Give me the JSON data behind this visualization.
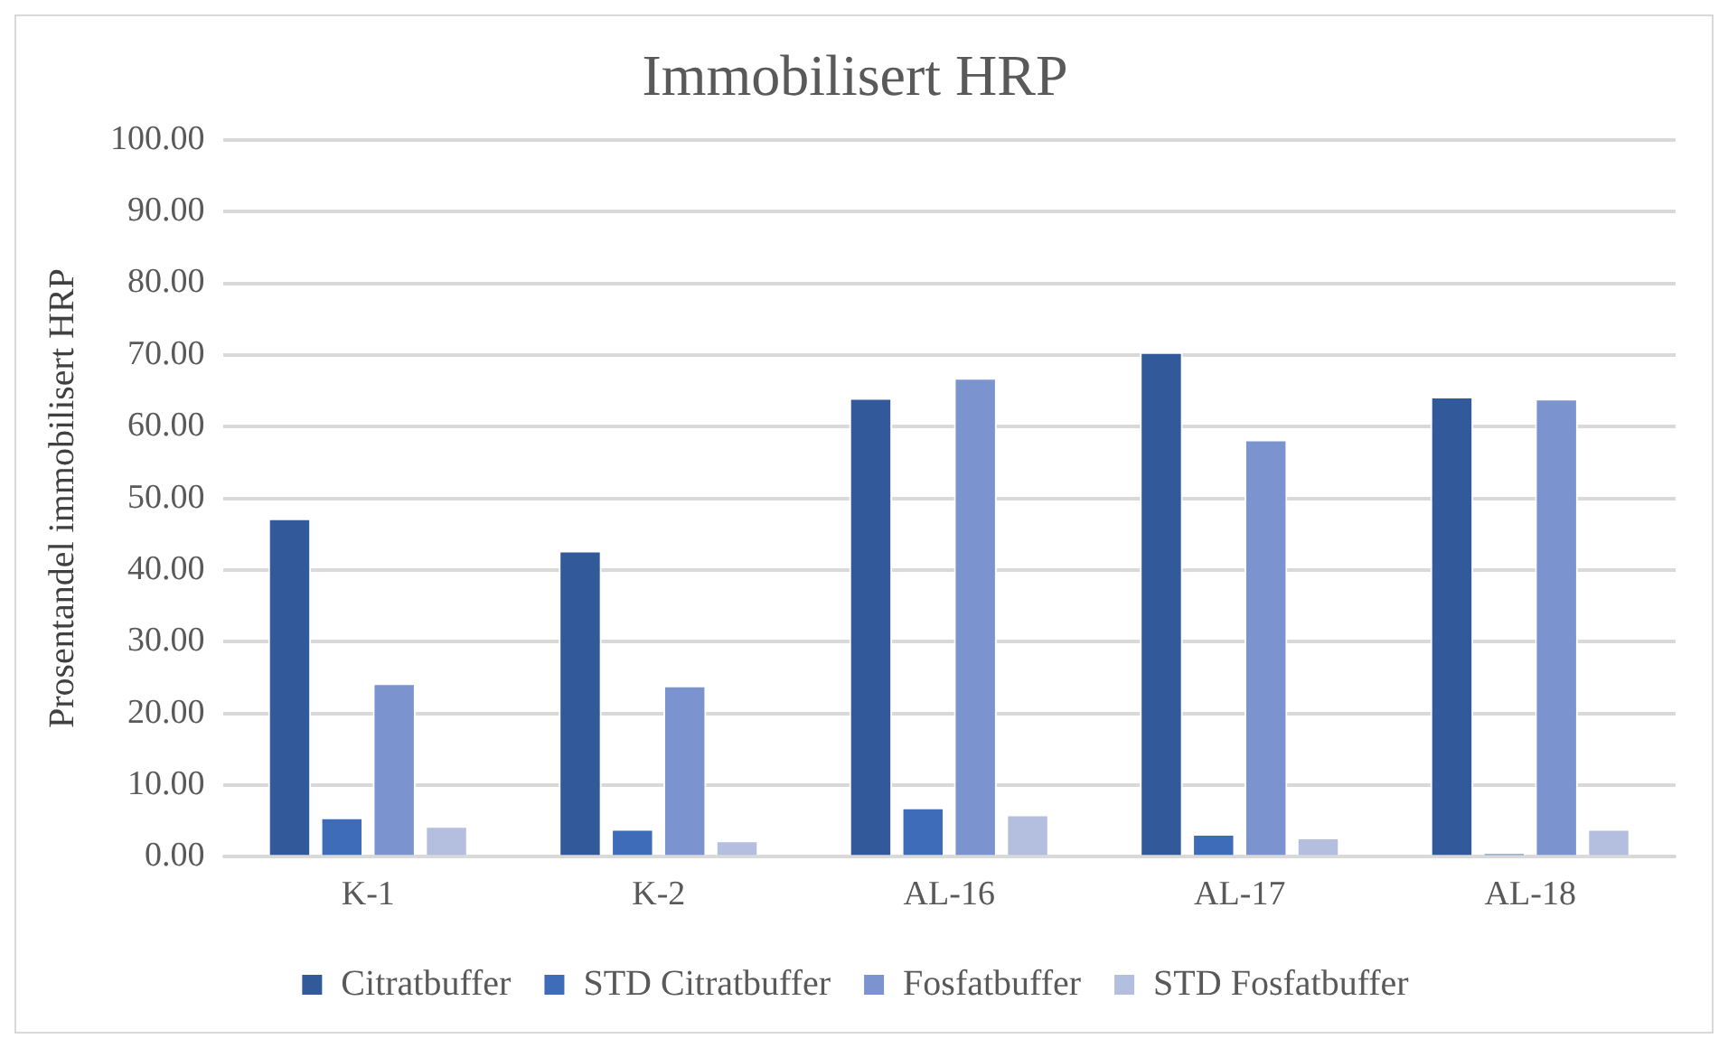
{
  "chart_data": {
    "type": "bar",
    "title": "Immobilisert HRP",
    "ylabel": "Prosentandel immobilisert HRP",
    "categories": [
      "K-1",
      "K-2",
      "AL-16",
      "AL-17",
      "AL-18"
    ],
    "series": [
      {
        "name": "Citratbuffer",
        "color": "#325a9a",
        "values": [
          47.2,
          42.7,
          64.0,
          70.4,
          64.2
        ]
      },
      {
        "name": "STD Citratbuffer",
        "color": "#3f6cb8",
        "values": [
          5.5,
          3.9,
          6.9,
          3.2,
          0.5
        ]
      },
      {
        "name": "Fosfatbuffer",
        "color": "#7b93cf",
        "values": [
          24.2,
          23.9,
          66.8,
          58.2,
          63.9
        ]
      },
      {
        "name": "STD Fosfatbuffer",
        "color": "#b4bfe0",
        "values": [
          4.3,
          2.3,
          5.9,
          2.7,
          3.9
        ]
      }
    ],
    "ylim": [
      0,
      100
    ],
    "yticks": [
      {
        "value": 0,
        "label": "0.00"
      },
      {
        "value": 10,
        "label": "10.00"
      },
      {
        "value": 20,
        "label": "20.00"
      },
      {
        "value": 30,
        "label": "30.00"
      },
      {
        "value": 40,
        "label": "40.00"
      },
      {
        "value": 50,
        "label": "50.00"
      },
      {
        "value": 60,
        "label": "60.00"
      },
      {
        "value": 70,
        "label": "70.00"
      },
      {
        "value": 80,
        "label": "80.00"
      },
      {
        "value": 90,
        "label": "90.00"
      },
      {
        "value": 100,
        "label": "100.00"
      }
    ],
    "grid": "y",
    "legend": "bottom"
  }
}
